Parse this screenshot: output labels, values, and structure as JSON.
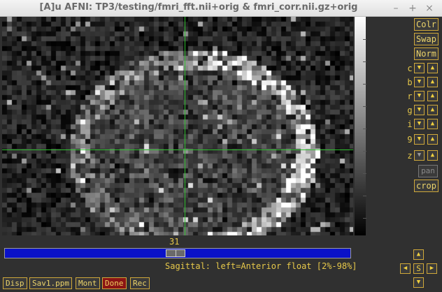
{
  "window": {
    "title": "[A]u AFNI: TP3/testing/fmri_fft.nii+orig & fmri_corr.nii.gz+orig",
    "minimize": "–",
    "maximize": "+",
    "close": "×"
  },
  "viewer": {
    "slice_number": "31",
    "status": "Sagittal: left=Anterior float [2%-98%]",
    "crosshair_color": "#2fbf2f",
    "slider_color": "#0a12c8"
  },
  "right_panel": {
    "colr": "Colr",
    "swap": "Swap",
    "norm": "Norm",
    "arrows": [
      {
        "label": "c"
      },
      {
        "label": "b"
      },
      {
        "label": "r"
      },
      {
        "label": "g"
      },
      {
        "label": "i"
      },
      {
        "label": "9"
      },
      {
        "label": "z"
      }
    ],
    "pan": "pan",
    "crop": "crop"
  },
  "bottom_buttons": {
    "disp": "Disp",
    "save": "Sav1.ppm",
    "mont": "Mont",
    "done": "Done",
    "rec": "Rec"
  },
  "nav_pad": {
    "center": "S"
  },
  "icons": {
    "up": "▲",
    "down": "▼",
    "left": "◀",
    "right": "▶"
  }
}
